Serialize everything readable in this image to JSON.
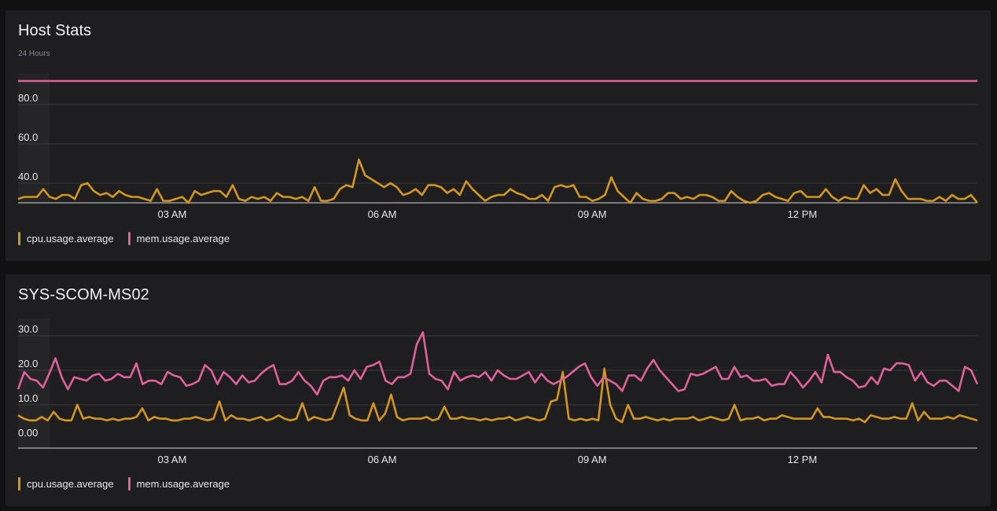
{
  "colors": {
    "cpu": "#d4961c",
    "mem": "#e0609a",
    "grid": "#3a3a3e",
    "axis": "#d8d8d8",
    "bg": "#1e1e20"
  },
  "panels": [
    {
      "title": "Host Stats",
      "subtitle": "24 Hours",
      "legend": [
        "cpu.usage.average",
        "mem.usage.average"
      ]
    },
    {
      "title": "SYS-SCOM-MS02",
      "subtitle": "",
      "legend": [
        "cpu.usage.average",
        "mem.usage.average"
      ]
    }
  ],
  "chart_data": [
    {
      "type": "line",
      "title": "Host Stats",
      "subtitle": "24 Hours",
      "x_ticks": [
        "03 AM",
        "06 AM",
        "09 AM",
        "12 PM"
      ],
      "x_tick_hours": [
        3,
        6,
        9,
        12
      ],
      "x_range": [
        0.8,
        14.5
      ],
      "y_ticks": [
        "40.0",
        "60.0",
        "80.0"
      ],
      "y_tick_values": [
        40,
        60,
        80
      ],
      "ylim": [
        30,
        96
      ],
      "grid": true,
      "legend_position": "bottom-left",
      "series": [
        {
          "name": "cpu.usage.average",
          "color": "#d4961c",
          "values": [
            32,
            33,
            33,
            33,
            37,
            33,
            32,
            34,
            34,
            32,
            39,
            40,
            36,
            34,
            35,
            33,
            36,
            34,
            33,
            33,
            32,
            31,
            37,
            31,
            31,
            32,
            33,
            30,
            36,
            34,
            35,
            36,
            36,
            33,
            39,
            32,
            31,
            33,
            32,
            33,
            31,
            35,
            33,
            33,
            32,
            33,
            31,
            38,
            31,
            31,
            32,
            37,
            39,
            38,
            52,
            44,
            42,
            40,
            38,
            40,
            38,
            34,
            35,
            37,
            34,
            39,
            39,
            38,
            35,
            37,
            34,
            41,
            37,
            34,
            31,
            33,
            34,
            34,
            37,
            35,
            34,
            32,
            32,
            34,
            31,
            38,
            39,
            38,
            39,
            33,
            33,
            31,
            32,
            34,
            43,
            36,
            33,
            30,
            35,
            32,
            31,
            31,
            32,
            35,
            35,
            32,
            33,
            32,
            34,
            34,
            33,
            31,
            31,
            36,
            33,
            31,
            30,
            31,
            34,
            35,
            33,
            32,
            31,
            35,
            36,
            33,
            33,
            33,
            37,
            33,
            31,
            33,
            32,
            32,
            39,
            35,
            37,
            34,
            34,
            42,
            36,
            32,
            32,
            32,
            31,
            31,
            33,
            31,
            34,
            32,
            32,
            34,
            30
          ]
        },
        {
          "name": "mem.usage.average",
          "color": "#e0609a",
          "constant": 92
        }
      ]
    },
    {
      "type": "line",
      "title": "SYS-SCOM-MS02",
      "x_ticks": [
        "03 AM",
        "06 AM",
        "09 AM",
        "12 PM"
      ],
      "x_tick_hours": [
        3,
        6,
        9,
        12
      ],
      "x_range": [
        0.8,
        14.5
      ],
      "y_ticks": [
        "0.00",
        "10.0",
        "20.0",
        "30.0"
      ],
      "y_tick_values": [
        0,
        10,
        20,
        30
      ],
      "ylim": [
        -2.5,
        35
      ],
      "grid": true,
      "legend_position": "bottom-left",
      "series": [
        {
          "name": "cpu.usage.average",
          "color": "#d4961c",
          "values": [
            7,
            6,
            5.5,
            5.5,
            6.5,
            5.5,
            8,
            6,
            5.5,
            5.5,
            10,
            6,
            6.5,
            6,
            6,
            5.5,
            6,
            5.5,
            6,
            6,
            6.5,
            9,
            5.5,
            6.5,
            6,
            6,
            5.5,
            5.5,
            6,
            6,
            6.5,
            6,
            5.5,
            6,
            11,
            5.5,
            7,
            6,
            6,
            5.5,
            6,
            6.5,
            5.5,
            6,
            7,
            6,
            5.5,
            6,
            10.5,
            5.5,
            6.5,
            6,
            5.5,
            6,
            10.5,
            15,
            7,
            6,
            5.5,
            5.5,
            10.5,
            5.5,
            7.5,
            13,
            6.5,
            5.5,
            6,
            6,
            6,
            6.5,
            5.5,
            6,
            9.5,
            6,
            6,
            6.5,
            6,
            6,
            5.5,
            6,
            5.5,
            6,
            6,
            6.5,
            5.5,
            6,
            6.5,
            6,
            5.5,
            6,
            11,
            11.5,
            19.5,
            6,
            5.5,
            6,
            5.5,
            6,
            5.5,
            20.5,
            10,
            6,
            5,
            10,
            6,
            6,
            6.5,
            6,
            5.5,
            6,
            5.5,
            6,
            6,
            6,
            6.5,
            5.5,
            6,
            6.5,
            6,
            5.5,
            6,
            10,
            5.5,
            6,
            6,
            6.5,
            5.5,
            6,
            6,
            7,
            6.5,
            6,
            6,
            6,
            6,
            9,
            6.5,
            6.5,
            6,
            6,
            6,
            5.5,
            6,
            5,
            7,
            6.5,
            6,
            6,
            6.5,
            6,
            6,
            10.5,
            5.5,
            8,
            6,
            6,
            6,
            6.5,
            6,
            7,
            6.5,
            6,
            5.5
          ]
        },
        {
          "name": "mem.usage.average",
          "color": "#e0609a",
          "values": [
            14.5,
            19.5,
            17.5,
            17,
            15,
            19,
            23.5,
            18,
            14.5,
            18,
            17.5,
            17,
            18.5,
            19,
            17,
            17.5,
            19,
            18,
            18,
            22,
            16,
            17,
            17,
            16,
            19.5,
            18.5,
            18,
            15.5,
            16,
            17,
            21.5,
            20,
            16,
            19.5,
            18,
            16,
            18.5,
            16.5,
            17,
            19,
            20.5,
            21.5,
            16,
            16,
            17,
            19.5,
            17,
            15.5,
            13,
            17,
            18,
            18,
            18.5,
            17,
            20,
            17.5,
            21,
            21.5,
            22.5,
            17,
            16,
            18,
            18,
            19,
            27.5,
            31,
            19,
            17.5,
            17,
            14.5,
            19.5,
            17,
            18,
            18.5,
            18,
            19.5,
            17,
            20,
            18.5,
            17.5,
            17.5,
            18.5,
            19.5,
            16.5,
            19,
            17,
            16,
            17,
            18,
            19.5,
            21,
            22,
            18,
            15.5,
            18,
            17,
            16,
            14,
            18.5,
            18.5,
            17,
            20.5,
            23,
            20,
            18,
            16,
            14,
            14.5,
            19,
            18.5,
            19,
            20,
            21,
            17.5,
            17.5,
            21,
            18,
            18.5,
            17,
            17,
            17.5,
            15.5,
            16,
            16,
            19.5,
            17.5,
            15,
            17,
            19.5,
            16.5,
            24.5,
            19.5,
            19.5,
            18,
            17,
            15,
            15.5,
            18,
            16,
            20.5,
            20,
            22,
            22,
            21.5,
            17,
            19.5,
            16.5,
            15.5,
            17,
            17,
            15.5,
            14,
            21,
            20,
            16
          ]
        }
      ]
    }
  ]
}
